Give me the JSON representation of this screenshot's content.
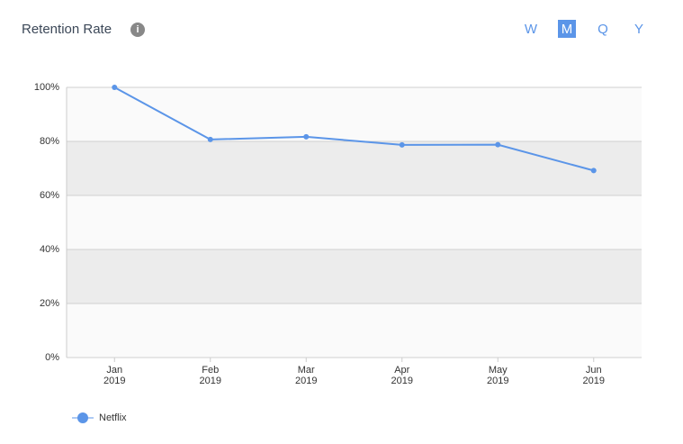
{
  "chart_data": {
    "type": "line",
    "title": "Retention Rate",
    "categories": [
      "Jan 2019",
      "Feb 2019",
      "Mar 2019",
      "Apr 2019",
      "May 2019",
      "Jun 2019"
    ],
    "series": [
      {
        "name": "Netflix",
        "color": "#5b95e8",
        "values": [
          100,
          80.7,
          81.7,
          78.7,
          78.8,
          69.2
        ]
      }
    ],
    "ylim": [
      0,
      100
    ],
    "yticks": [
      {
        "value": 0,
        "label": "0%"
      },
      {
        "value": 20,
        "label": "20%"
      },
      {
        "value": 40,
        "label": "40%"
      },
      {
        "value": 60,
        "label": "60%"
      },
      {
        "value": 80,
        "label": "80%"
      },
      {
        "value": 100,
        "label": "100%"
      }
    ],
    "grid": true,
    "legend": "bottom-left"
  },
  "controls": {
    "periods": [
      "W",
      "M",
      "Q",
      "Y"
    ],
    "selected_index": 1
  }
}
